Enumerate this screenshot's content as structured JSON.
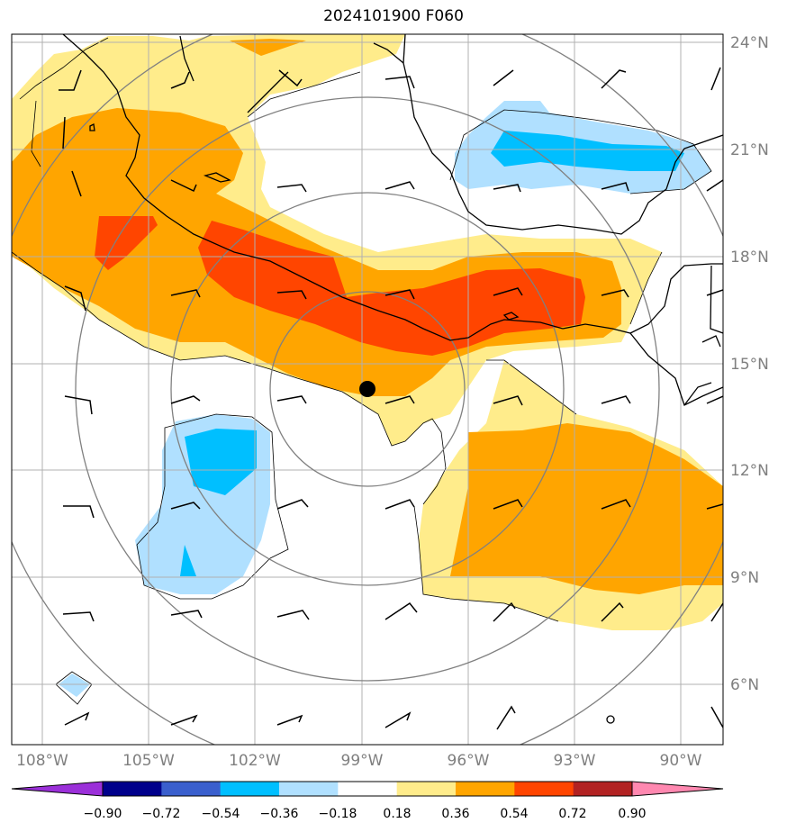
{
  "title": "2024101900 F060",
  "map": {
    "lat_labels": [
      "24°N",
      "21°N",
      "18°N",
      "15°N",
      "12°N",
      "9°N",
      "6°N"
    ],
    "lon_labels": [
      "108°W",
      "105°W",
      "102°W",
      "99°W",
      "96°W",
      "93°W",
      "90°W"
    ],
    "center_marker": "storm-center-dot",
    "gridline_color": "#b0b0b0",
    "range_ring_color": "#808080"
  },
  "colorbar": {
    "labels": [
      "−0.90",
      "−0.72",
      "−0.54",
      "−0.36",
      "−0.18",
      "0.18",
      "0.36",
      "0.54",
      "0.72",
      "0.90"
    ],
    "colors": [
      "#9b30d9",
      "#00008b",
      "#3a5fcd",
      "#00bfff",
      "#b0e0ff",
      "#ffffff",
      "#ffec8b",
      "#ffa500",
      "#ff4500",
      "#b22222",
      "#ff88b0"
    ]
  }
}
